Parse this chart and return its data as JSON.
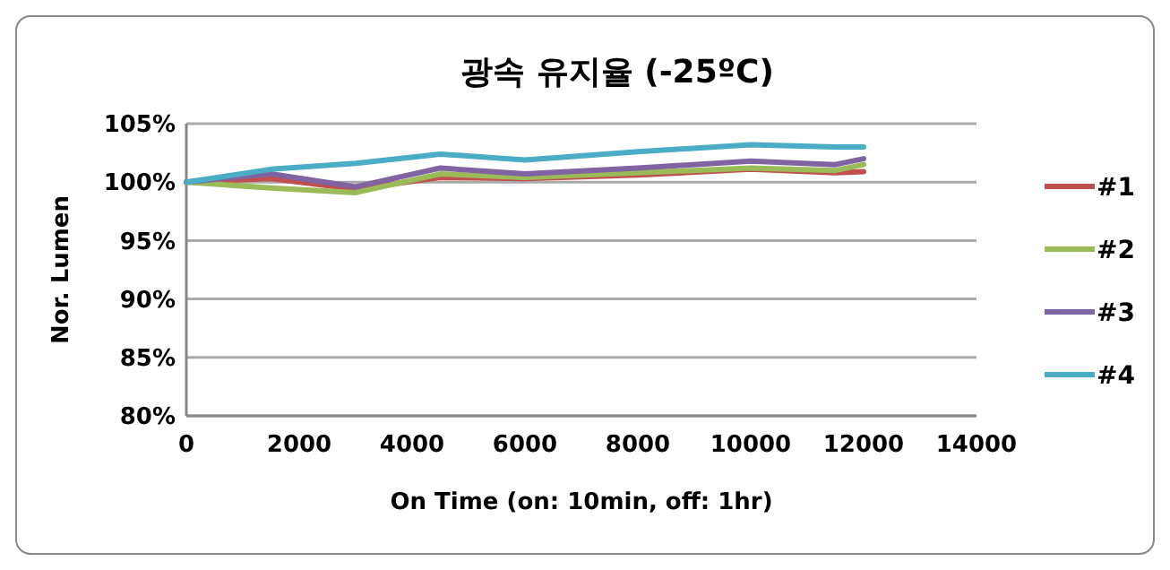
{
  "chart_data": {
    "type": "line",
    "title": "광속 유지율 (-25ºC)",
    "xlabel": "On Time (on: 10min, off: 1hr)",
    "ylabel": "Nor. Lumen",
    "x": [
      0,
      1500,
      3000,
      4500,
      6000,
      8000,
      10000,
      11500,
      12000
    ],
    "series": [
      {
        "name": "#1",
        "color": "#c0504d",
        "values": [
          100,
          100.3,
          99.4,
          100.4,
          100.3,
          100.6,
          101.1,
          100.8,
          100.9
        ]
      },
      {
        "name": "#2",
        "color": "#9bbb59",
        "values": [
          100,
          99.5,
          99.1,
          100.7,
          100.4,
          100.8,
          101.2,
          101.0,
          101.5
        ]
      },
      {
        "name": "#3",
        "color": "#8064a2",
        "values": [
          100,
          100.7,
          99.6,
          101.2,
          100.7,
          101.2,
          101.8,
          101.5,
          102.0
        ]
      },
      {
        "name": "#4",
        "color": "#4bacc6",
        "values": [
          100,
          101.1,
          101.6,
          102.4,
          101.9,
          102.6,
          103.2,
          103.0,
          103.0
        ]
      }
    ],
    "xlim": [
      0,
      14000
    ],
    "xticks": [
      0,
      2000,
      4000,
      6000,
      8000,
      10000,
      12000,
      14000
    ],
    "ylim": [
      80,
      105
    ],
    "yticks": [
      {
        "value": 80,
        "label": "80%"
      },
      {
        "value": 85,
        "label": "85%"
      },
      {
        "value": 90,
        "label": "90%"
      },
      {
        "value": 95,
        "label": "95%"
      },
      {
        "value": 100,
        "label": "100%"
      },
      {
        "value": 105,
        "label": "105%"
      }
    ],
    "grid": "y",
    "legend": "right",
    "marker": "none",
    "line_style": "solid"
  }
}
